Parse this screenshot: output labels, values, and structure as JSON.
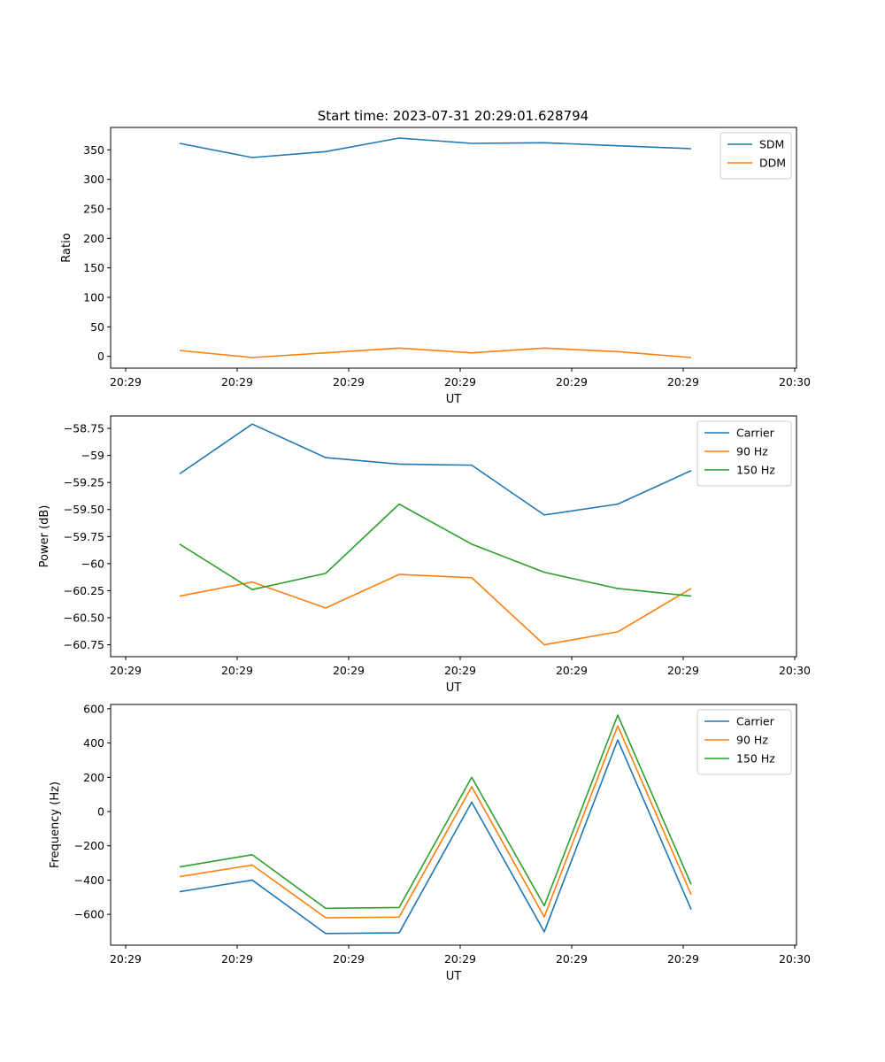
{
  "figure": {
    "title": "Start time: 2023-07-31 20:29:01.628794"
  },
  "chart_data": [
    {
      "type": "line",
      "title": "Start time: 2023-07-31 20:29:01.628794",
      "xlabel": "UT",
      "ylabel": "Ratio",
      "x_tick_labels": [
        "20:29",
        "20:29",
        "20:29",
        "20:29",
        "20:29",
        "20:29",
        "20:30"
      ],
      "ylim": [
        -20,
        388
      ],
      "yticks": [
        0,
        50,
        100,
        150,
        200,
        250,
        300,
        350
      ],
      "series": [
        {
          "name": "SDM",
          "color": "#1f77b4",
          "values": [
            361,
            337,
            347,
            370,
            361,
            362,
            357,
            352
          ]
        },
        {
          "name": "DDM",
          "color": "#ff7f0e",
          "values": [
            10,
            -2,
            6,
            14,
            6,
            14,
            8,
            -2
          ]
        }
      ],
      "legend": "top-right"
    },
    {
      "type": "line",
      "title": "",
      "xlabel": "UT",
      "ylabel": "Power (dB)",
      "x_tick_labels": [
        "20:29",
        "20:29",
        "20:29",
        "20:29",
        "20:29",
        "20:29",
        "20:30"
      ],
      "ylim": [
        -60.86,
        -58.635
      ],
      "yticks": [
        -60.75,
        -60.5,
        -60.25,
        -60.0,
        -59.75,
        -59.5,
        -59.25,
        -59.0,
        -58.75
      ],
      "series": [
        {
          "name": "Carrier",
          "color": "#1f77b4",
          "values": [
            -59.17,
            -58.71,
            -59.02,
            -59.08,
            -59.09,
            -59.55,
            -59.45,
            -59.14
          ]
        },
        {
          "name": "90 Hz",
          "color": "#ff7f0e",
          "values": [
            -60.3,
            -60.17,
            -60.41,
            -60.1,
            -60.13,
            -60.75,
            -60.63,
            -60.23
          ]
        },
        {
          "name": "150 Hz",
          "color": "#2ca02c",
          "values": [
            -59.82,
            -60.24,
            -60.09,
            -59.45,
            -59.82,
            -60.08,
            -60.23,
            -60.3
          ]
        }
      ],
      "legend": "top-right"
    },
    {
      "type": "line",
      "title": "",
      "xlabel": "UT",
      "ylabel": "Frequency (Hz)",
      "x_tick_labels": [
        "20:29",
        "20:29",
        "20:29",
        "20:29",
        "20:29",
        "20:29",
        "20:30"
      ],
      "ylim": [
        -780,
        625
      ],
      "yticks": [
        -600,
        -400,
        -200,
        0,
        200,
        400,
        600
      ],
      "series": [
        {
          "name": "Carrier",
          "color": "#1f77b4",
          "values": [
            -468,
            -400,
            -712,
            -708,
            55,
            -702,
            418,
            -572
          ]
        },
        {
          "name": "90 Hz",
          "color": "#ff7f0e",
          "values": [
            -380,
            -312,
            -620,
            -616,
            145,
            -615,
            500,
            -485
          ]
        },
        {
          "name": "150 Hz",
          "color": "#2ca02c",
          "values": [
            -323,
            -252,
            -565,
            -560,
            200,
            -550,
            563,
            -425
          ]
        }
      ],
      "legend": "top-right"
    }
  ]
}
